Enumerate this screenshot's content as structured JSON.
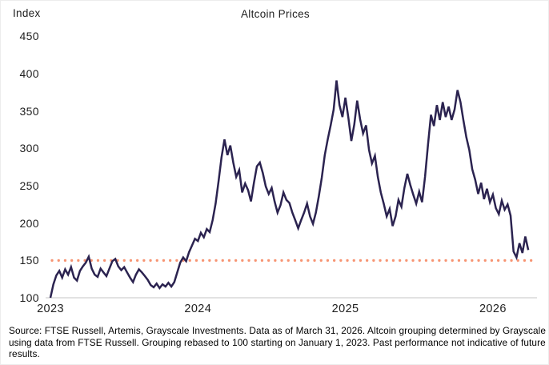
{
  "page": {
    "background": "#ffffff"
  },
  "chart": {
    "title": "Altcoin Prices",
    "axis_unit_label": "Index",
    "y_ticks": [
      "450",
      "400",
      "350",
      "300",
      "250",
      "200",
      "150",
      "100"
    ],
    "x_ticks": [
      "2023",
      "2024",
      "2025",
      "2026"
    ],
    "colors": {
      "line": "#2b2350",
      "reference_dotted": "#f79472",
      "baseline": "#d9d9d9",
      "text": "#1f1f1f"
    }
  },
  "chart_data": {
    "type": "line",
    "title": "Altcoin Prices",
    "ylabel": "Index",
    "xlabel": "",
    "grid": false,
    "legend_position": "none",
    "xlim": [
      2023.0,
      2026.3
    ],
    "ylim": [
      100,
      450
    ],
    "x_tick_labels": [
      2023,
      2024,
      2025,
      2026
    ],
    "y_tick_values": [
      100,
      150,
      200,
      250,
      300,
      350,
      400,
      450
    ],
    "x_unit": "decimal_year",
    "x_start": 2023.0,
    "x_step": 0.02,
    "x_end": 2026.24,
    "series": [
      {
        "name": "Altcoin grouping index (rebased to 100 on Jan 1, 2023)",
        "values": [
          100,
          118,
          130,
          136,
          127,
          138,
          131,
          141,
          127,
          123,
          136,
          142,
          147,
          155,
          139,
          131,
          128,
          139,
          134,
          129,
          139,
          149,
          152,
          142,
          137,
          141,
          134,
          127,
          121,
          131,
          138,
          134,
          129,
          124,
          117,
          114,
          119,
          113,
          118,
          115,
          120,
          115,
          121,
          134,
          147,
          154,
          149,
          161,
          170,
          179,
          176,
          187,
          181,
          192,
          188,
          204,
          226,
          256,
          288,
          312,
          291,
          304,
          281,
          262,
          271,
          241,
          253,
          244,
          229,
          254,
          276,
          281,
          267,
          249,
          239,
          247,
          229,
          214,
          224,
          241,
          231,
          227,
          214,
          204,
          193,
          204,
          214,
          226,
          209,
          199,
          214,
          236,
          261,
          291,
          312,
          331,
          352,
          391,
          358,
          342,
          368,
          341,
          310,
          332,
          364,
          339,
          320,
          331,
          298,
          280,
          290,
          262,
          241,
          226,
          209,
          219,
          196,
          209,
          231,
          222,
          247,
          266,
          251,
          238,
          226,
          242,
          228,
          262,
          305,
          345,
          330,
          358,
          338,
          362,
          342,
          356,
          338,
          352,
          378,
          362,
          338,
          315,
          298,
          272,
          258,
          239,
          254,
          232,
          246,
          228,
          238,
          220,
          212,
          230,
          218,
          225,
          210,
          162,
          154,
          173,
          160,
          182,
          164
        ]
      }
    ],
    "reference_line": {
      "value": 150,
      "style": "dotted",
      "color": "#f79472"
    },
    "baseline": {
      "value": 100,
      "color": "#d9d9d9"
    }
  },
  "footer": {
    "source_text": "Source: FTSE Russell, Artemis, Grayscale Investments. Data as of March 31, 2026. Altcoin grouping determined by Grayscale using data from FTSE Russell. Grouping rebased to 100 starting on January 1, 2023. Past performance not indicative of future results."
  }
}
